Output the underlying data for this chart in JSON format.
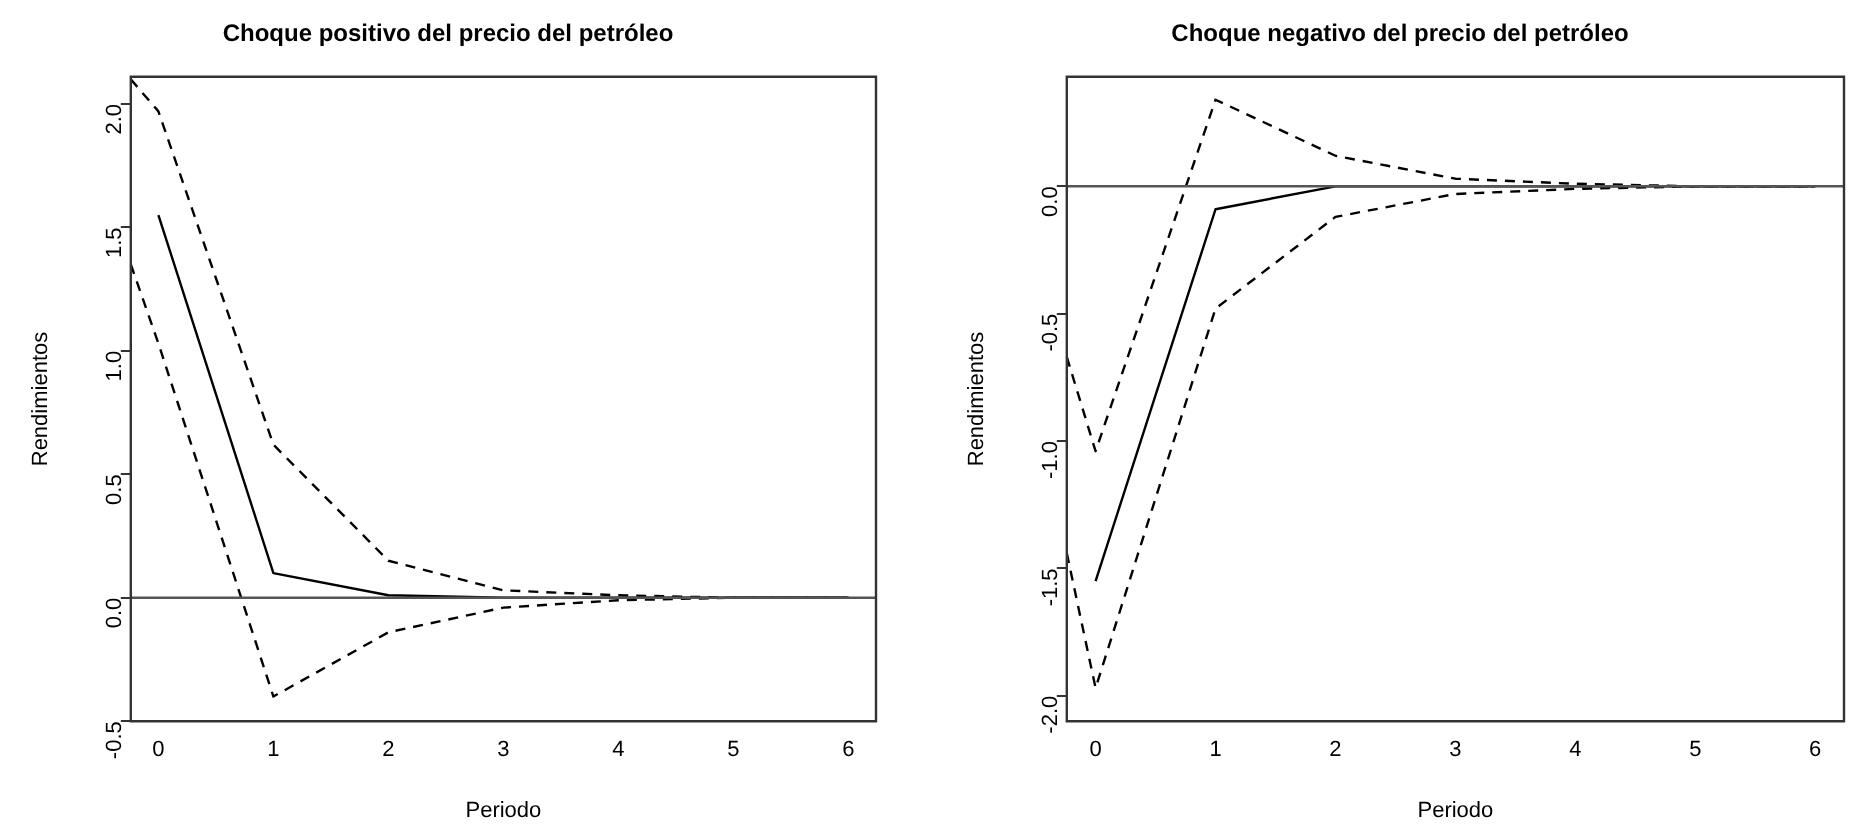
{
  "chart_data": [
    {
      "type": "line",
      "title": "Choque positivo del precio del petróleo",
      "xlabel": "Periodo",
      "ylabel": "Rendimientos",
      "xlim": [
        -0.24,
        6.24
      ],
      "xticks": [
        0,
        1,
        2,
        3,
        4,
        5,
        6
      ],
      "ylim": [
        -0.5,
        2.11
      ],
      "yticks": [
        -0.5,
        {
          "value": 0,
          "label": "0.0"
        },
        0.5,
        {
          "value": 1,
          "label": "1.0"
        },
        1.5,
        {
          "value": 2,
          "label": "2.0"
        }
      ],
      "grid": false,
      "legend": false,
      "marker": "none",
      "ref_lines": [
        {
          "axis": "y",
          "value": 0,
          "color": "#555555"
        }
      ],
      "series": [
        {
          "color": "#000000",
          "line_style": "solid",
          "x": [
            0,
            1,
            2,
            3,
            4,
            5,
            6
          ],
          "values": [
            1.55,
            0.1,
            0.01,
            0,
            0,
            0,
            0
          ]
        },
        {
          "color": "#000000",
          "line_style": "dashed",
          "x": [
            -0.24,
            0,
            1,
            2,
            3,
            4,
            5,
            6
          ],
          "values": [
            2.1,
            1.97,
            0.62,
            0.15,
            0.03,
            0.01,
            0,
            0
          ]
        },
        {
          "color": "#000000",
          "line_style": "dashed",
          "x": [
            -0.24,
            0,
            1,
            2,
            3,
            4,
            5,
            6
          ],
          "values": [
            1.35,
            1.03,
            -0.4,
            -0.14,
            -0.04,
            -0.01,
            0,
            0
          ]
        }
      ]
    },
    {
      "type": "line",
      "title": "Choque negativo del precio del petróleo",
      "xlabel": "Periodo",
      "ylabel": "Rendimientos",
      "xlim": [
        -0.24,
        6.24
      ],
      "xticks": [
        0,
        1,
        2,
        3,
        4,
        5,
        6
      ],
      "ylim": [
        -2.1,
        0.43
      ],
      "yticks": [
        {
          "value": -2,
          "label": "-2.0"
        },
        -1.5,
        {
          "value": -1,
          "label": "-1.0"
        },
        -0.5,
        {
          "value": 0,
          "label": "0.0"
        }
      ],
      "grid": false,
      "legend": false,
      "marker": "none",
      "ref_lines": [
        {
          "axis": "y",
          "value": 0,
          "color": "#555555"
        }
      ],
      "series": [
        {
          "color": "#000000",
          "line_style": "solid",
          "x": [
            0,
            1,
            2,
            3,
            4,
            5,
            6
          ],
          "values": [
            -1.55,
            -0.09,
            0,
            0,
            0,
            0,
            0
          ]
        },
        {
          "color": "#000000",
          "line_style": "dashed",
          "x": [
            -0.24,
            0,
            1,
            2,
            3,
            4,
            5,
            6
          ],
          "values": [
            -0.67,
            -1.04,
            0.34,
            0.12,
            0.03,
            0.01,
            0,
            0
          ]
        },
        {
          "color": "#000000",
          "line_style": "dashed",
          "x": [
            -0.24,
            0,
            1,
            2,
            3,
            4,
            5,
            6
          ],
          "values": [
            -1.44,
            -1.97,
            -0.48,
            -0.12,
            -0.03,
            -0.01,
            0,
            0
          ]
        }
      ]
    }
  ]
}
